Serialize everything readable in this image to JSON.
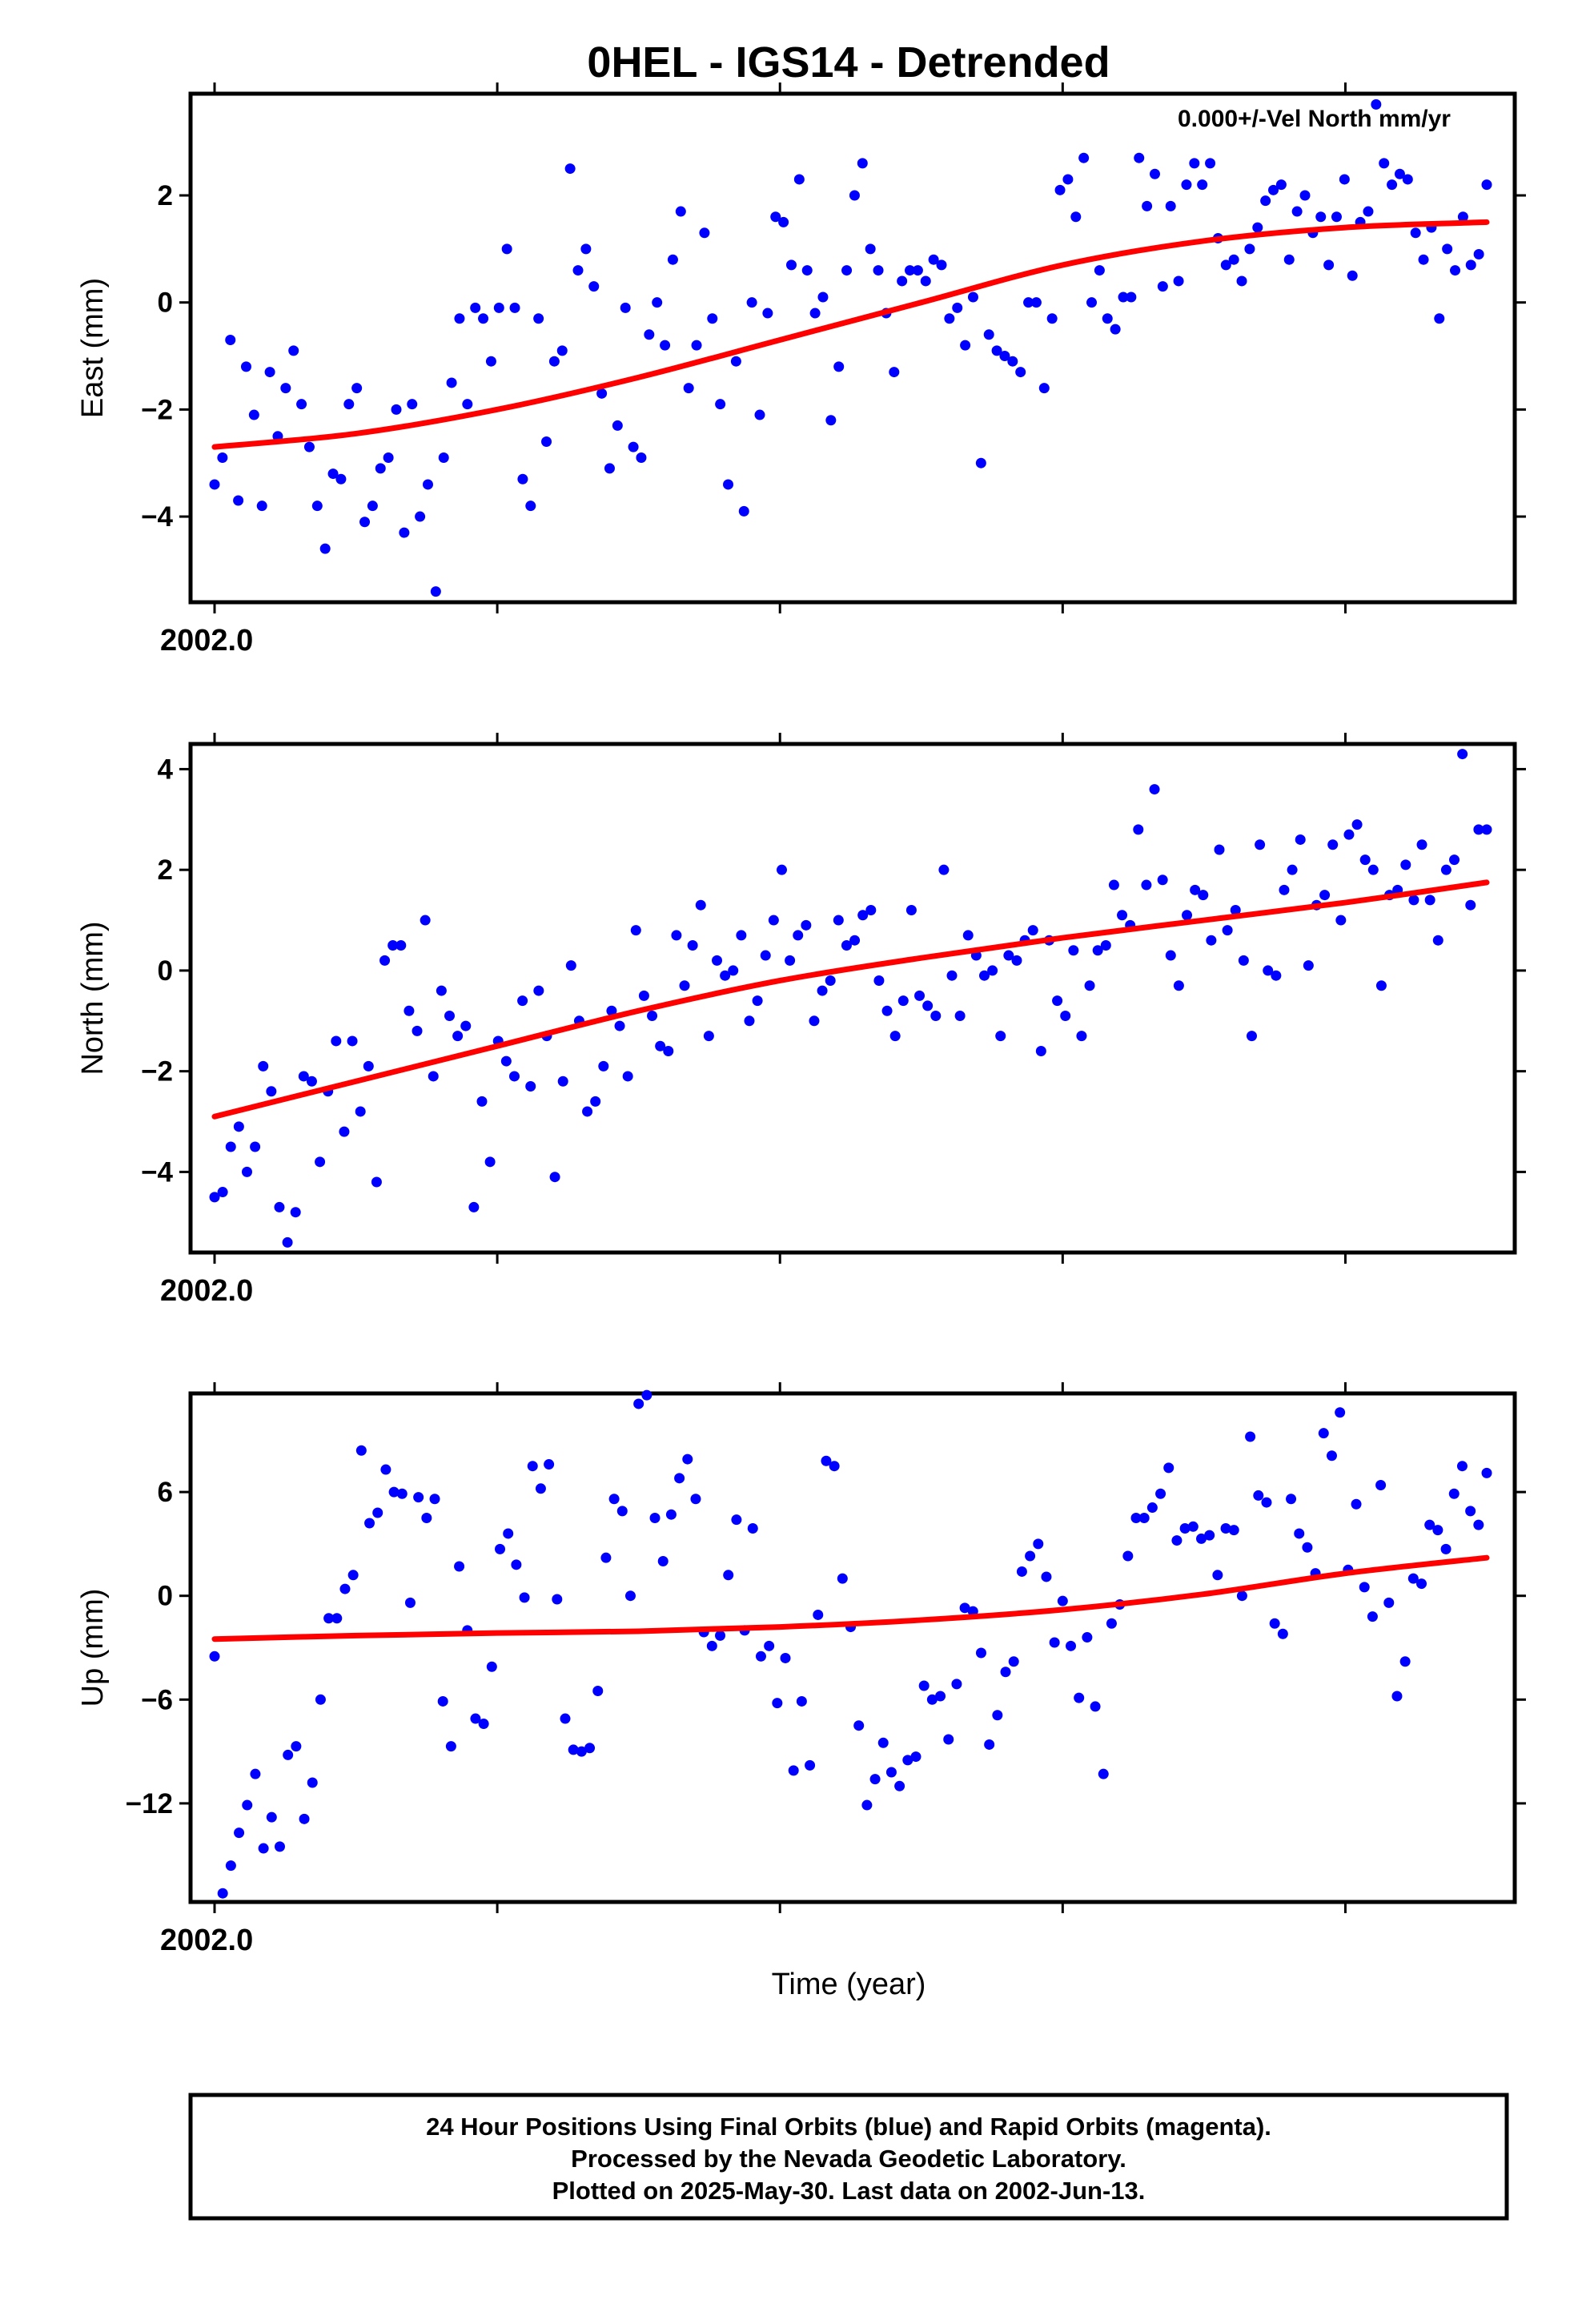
{
  "chart_data": [
    {
      "type": "scatter",
      "title": "0HEL - IGS14 - Detrended",
      "annotation": "0.000+/-Vel North mm/yr",
      "ylabel": "East (mm)",
      "xlabel": "",
      "xlim": [
        2002.0,
        2002.45
      ],
      "ylim": [
        -5.6,
        3.9
      ],
      "yticks": [
        2,
        0,
        -2,
        -4
      ],
      "ytick_labels": [
        "2",
        "0",
        "−2",
        "−4"
      ],
      "x_tick_label": "2002.0",
      "series": [
        {
          "name": "Final Orbits",
          "color": "#0000ff",
          "x_range": [
            2002.0,
            2002.45
          ],
          "values": [
            -3.4,
            -2.9,
            -0.7,
            -3.7,
            -1.2,
            -2.1,
            -3.8,
            -1.3,
            -2.5,
            -1.6,
            -0.9,
            -1.9,
            -2.7,
            -3.8,
            -4.6,
            -3.2,
            -3.3,
            -1.9,
            -1.6,
            -4.1,
            -3.8,
            -3.1,
            -2.9,
            -2.0,
            -4.3,
            -1.9,
            -4.0,
            -3.4,
            -5.4,
            -2.9,
            -1.5,
            -0.3,
            -1.9,
            -0.1,
            -0.3,
            -1.1,
            -0.1,
            1.0,
            -0.1,
            -3.3,
            -3.8,
            -0.3,
            -2.6,
            -1.1,
            -0.9,
            2.5,
            0.6,
            1.0,
            0.3,
            -1.7,
            -3.1,
            -2.3,
            -0.1,
            -2.7,
            -2.9,
            -0.6,
            0.0,
            -0.8,
            0.8,
            1.7,
            -1.6,
            -0.8,
            1.3,
            -0.3,
            -1.9,
            -3.4,
            -1.1,
            -3.9,
            0.0,
            -2.1,
            -0.2,
            1.6,
            1.5,
            0.7,
            2.3,
            0.6,
            -0.2,
            0.1,
            -2.2,
            -1.2,
            0.6,
            2.0,
            2.6,
            1.0,
            0.6,
            -0.2,
            -1.3,
            0.4,
            0.6,
            0.6,
            0.4,
            0.8,
            0.7,
            -0.3,
            -0.1,
            -0.8,
            0.1,
            -3.0,
            -0.6,
            -0.9,
            -1.0,
            -1.1,
            -1.3,
            0.0,
            0.0,
            -1.6,
            -0.3,
            2.1,
            2.3,
            1.6,
            2.7,
            0.0,
            0.6,
            -0.3,
            -0.5,
            0.1,
            0.1,
            2.7,
            1.8,
            2.4,
            0.3,
            1.8,
            0.4,
            2.2,
            2.6,
            2.2,
            2.6,
            1.2,
            0.7,
            0.8,
            0.4,
            1.0,
            1.4,
            1.9,
            2.1,
            2.2,
            0.8,
            1.7,
            2.0,
            1.3,
            1.6,
            0.7,
            1.6,
            2.3,
            0.5,
            1.5,
            1.7,
            3.7,
            2.6,
            2.2,
            2.4,
            2.3,
            1.3,
            0.8,
            1.4,
            -0.3,
            1.0,
            0.6,
            1.6,
            0.7,
            0.9,
            2.2
          ]
        },
        {
          "name": "Fit",
          "color": "#ff0000",
          "values": [
            -2.7,
            -2.45,
            -2.0,
            -1.4,
            -0.7,
            0.0,
            0.7,
            1.15,
            1.4,
            1.5
          ]
        }
      ]
    },
    {
      "type": "scatter",
      "ylabel": "North (mm)",
      "xlabel": "",
      "xlim": [
        2002.0,
        2002.45
      ],
      "ylim": [
        -5.6,
        4.5
      ],
      "yticks": [
        4,
        2,
        0,
        -2,
        -4
      ],
      "ytick_labels": [
        "4",
        "2",
        "0",
        "−2",
        "−4"
      ],
      "x_tick_label": "2002.0",
      "series": [
        {
          "name": "Final Orbits",
          "color": "#0000ff",
          "x_range": [
            2002.0,
            2002.45
          ],
          "values": [
            -4.5,
            -4.4,
            -3.5,
            -3.1,
            -4.0,
            -3.5,
            -1.9,
            -2.4,
            -4.7,
            -5.4,
            -4.8,
            -2.1,
            -2.2,
            -3.8,
            -2.4,
            -1.4,
            -3.2,
            -1.4,
            -2.8,
            -1.9,
            -4.2,
            0.2,
            0.5,
            0.5,
            -0.8,
            -1.2,
            1.0,
            -2.1,
            -0.4,
            -0.9,
            -1.3,
            -1.1,
            -4.7,
            -2.6,
            -3.8,
            -1.4,
            -1.8,
            -2.1,
            -0.6,
            -2.3,
            -0.4,
            -1.3,
            -4.1,
            -2.2,
            0.1,
            -1.0,
            -2.8,
            -2.6,
            -1.9,
            -0.8,
            -1.1,
            -2.1,
            0.8,
            -0.5,
            -0.9,
            -1.5,
            -1.6,
            0.7,
            -0.3,
            0.5,
            1.3,
            -1.3,
            0.2,
            -0.1,
            0.0,
            0.7,
            -1.0,
            -0.6,
            0.3,
            1.0,
            2.0,
            0.2,
            0.7,
            0.9,
            -1.0,
            -0.4,
            -0.2,
            1.0,
            0.5,
            0.6,
            1.1,
            1.2,
            -0.2,
            -0.8,
            -1.3,
            -0.6,
            1.2,
            -0.5,
            -0.7,
            -0.9,
            2.0,
            -0.1,
            -0.9,
            0.7,
            0.3,
            -0.1,
            0.0,
            -1.3,
            0.3,
            0.2,
            0.6,
            0.8,
            -1.6,
            0.6,
            -0.6,
            -0.9,
            0.4,
            -1.3,
            -0.3,
            0.4,
            0.5,
            1.7,
            1.1,
            0.9,
            2.8,
            1.7,
            3.6,
            1.8,
            0.3,
            -0.3,
            1.1,
            1.6,
            1.5,
            0.6,
            2.4,
            0.8,
            1.2,
            0.2,
            -1.3,
            2.5,
            0.0,
            -0.1,
            1.6,
            2.0,
            2.6,
            0.1,
            1.3,
            1.5,
            2.5,
            1.0,
            2.7,
            2.9,
            2.2,
            2.0,
            -0.3,
            1.5,
            1.6,
            2.1,
            1.4,
            2.5,
            1.4,
            0.6,
            2.0,
            2.2,
            4.3,
            1.3,
            2.8,
            2.8
          ]
        },
        {
          "name": "Fit",
          "color": "#ff0000",
          "values": [
            -2.9,
            -2.2,
            -1.5,
            -0.8,
            -0.2,
            0.25,
            0.65,
            1.0,
            1.35,
            1.75
          ]
        }
      ]
    },
    {
      "type": "scatter",
      "ylabel": "Up (mm)",
      "xlabel": "Time (year)",
      "xlim": [
        2002.0,
        2002.45
      ],
      "ylim": [
        -17.7,
        11.7
      ],
      "yticks": [
        6,
        0,
        -6,
        -12
      ],
      "ytick_labels": [
        "6",
        "0",
        "−6",
        "−12"
      ],
      "x_tick_label": "2002.0",
      "series": [
        {
          "name": "Final Orbits",
          "color": "#0000ff",
          "x_range": [
            2002.0,
            2002.45
          ],
          "values": [
            -3.5,
            -17.2,
            -15.6,
            -13.7,
            -12.1,
            -10.3,
            -14.6,
            -12.8,
            -14.5,
            -9.2,
            -8.7,
            -12.9,
            -10.8,
            -6.0,
            -1.3,
            -1.3,
            0.4,
            1.2,
            8.4,
            4.2,
            4.8,
            7.3,
            6.0,
            5.9,
            -0.4,
            5.7,
            4.5,
            5.6,
            -6.1,
            -8.7,
            1.7,
            -2.0,
            -7.1,
            -7.4,
            -4.1,
            2.7,
            3.6,
            1.8,
            -0.1,
            7.5,
            6.2,
            7.6,
            -0.2,
            -7.1,
            -8.9,
            -9.0,
            -8.8,
            -5.5,
            2.2,
            5.6,
            4.9,
            0.0,
            11.1,
            11.6,
            4.5,
            2.0,
            4.7,
            6.8,
            7.9,
            5.6,
            -2.1,
            -2.9,
            -2.3,
            1.2,
            4.4,
            -2.0,
            3.9,
            -3.5,
            -2.9,
            -6.2,
            -3.6,
            -10.1,
            -6.1,
            -9.8,
            -1.1,
            7.8,
            7.5,
            1.0,
            -1.8,
            -7.5,
            -12.1,
            -10.6,
            -8.5,
            -10.2,
            -11.0,
            -9.5,
            -9.3,
            -5.2,
            -6.0,
            -5.8,
            -8.3,
            -5.1,
            -0.7,
            -0.9,
            -3.3,
            -8.6,
            -6.9,
            -4.4,
            -3.8,
            1.4,
            2.3,
            3.0,
            1.1,
            -2.7,
            -0.3,
            -2.9,
            -5.9,
            -2.4,
            -6.4,
            -10.3,
            -1.6,
            -0.5,
            2.3,
            4.5,
            4.5,
            5.1,
            5.9,
            7.4,
            3.2,
            3.9,
            4.0,
            3.3,
            3.5,
            1.2,
            3.9,
            3.8,
            0.0,
            9.2,
            5.8,
            5.4,
            -1.6,
            -2.2,
            5.6,
            3.6,
            2.8,
            1.3,
            9.4,
            8.1,
            10.6,
            1.5,
            5.3,
            0.5,
            -1.2,
            6.4,
            -0.4,
            -5.8,
            -3.8,
            1.0,
            0.7,
            4.1,
            3.8,
            2.7,
            5.9,
            7.5,
            4.9,
            4.1,
            7.1
          ]
        },
        {
          "name": "Fit",
          "color": "#ff0000",
          "values": [
            -2.5,
            -2.3,
            -2.15,
            -2.05,
            -1.8,
            -1.4,
            -0.8,
            0.1,
            1.3,
            2.2
          ]
        }
      ]
    }
  ],
  "footer": {
    "line1": "24 Hour Positions Using Final Orbits (blue) and Rapid Orbits (magenta).",
    "line2": "Processed by the Nevada Geodetic Laboratory.",
    "line3": "Plotted on 2025-May-30. Last data on 2002-Jun-13."
  }
}
